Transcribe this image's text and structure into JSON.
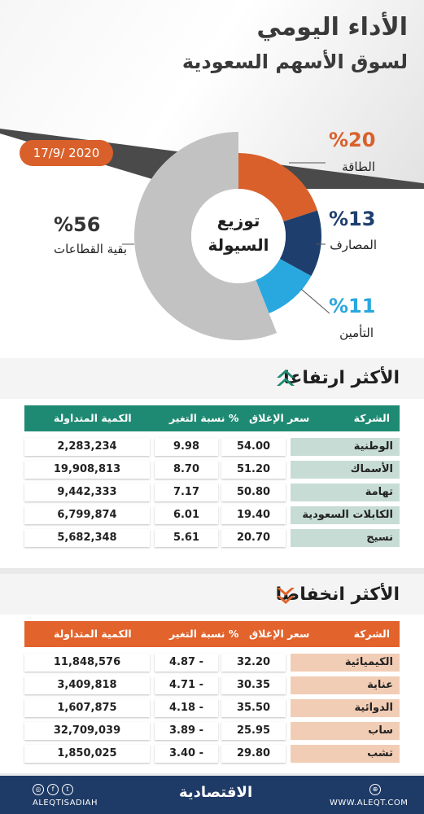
{
  "header": {
    "title_line1": "الأداء اليومي",
    "title_line2": "لسوق الأسهم السعودية",
    "date": "17/9/ 2020"
  },
  "chart_data": {
    "type": "pie",
    "center_label_line1": "توزيع",
    "center_label_line2": "السيولة",
    "slices": [
      {
        "label": "الطاقة",
        "pct_text": "%20",
        "value": 20,
        "color": "#d9602b"
      },
      {
        "label": "المصارف",
        "pct_text": "%13",
        "value": 13,
        "color": "#1e3f6e"
      },
      {
        "label": "التأمين",
        "pct_text": "%11",
        "value": 11,
        "color": "#29a8df"
      },
      {
        "label": "بقية القطاعات",
        "pct_text": "%56",
        "value": 56,
        "color": "#c2c2c2"
      }
    ]
  },
  "gainers": {
    "title": "الأكثر ارتفاعا",
    "header_color": "#1f8a73",
    "name_cell_color": "#c7dcd5",
    "columns": {
      "name": "الشركة",
      "close": "سعر الإغلاق",
      "pct": "نسبة التغير %",
      "qty": "الكمية المتداولة"
    },
    "rows": [
      {
        "name": "الوطنية",
        "close": "54.00",
        "pct": "9.98",
        "qty": "2,283,234"
      },
      {
        "name": "الأسماك",
        "close": "51.20",
        "pct": "8.70",
        "qty": "19,908,813"
      },
      {
        "name": "تهامة",
        "close": "50.80",
        "pct": "7.17",
        "qty": "9,442,333"
      },
      {
        "name": "الكابلات السعودية",
        "close": "19.40",
        "pct": "6.01",
        "qty": "6,799,874"
      },
      {
        "name": "نسيج",
        "close": "20.70",
        "pct": "5.61",
        "qty": "5,682,348"
      }
    ]
  },
  "losers": {
    "title": "الأكثر انخفاضا",
    "header_color": "#e2632c",
    "name_cell_color": "#f2cdb5",
    "columns": {
      "name": "الشركة",
      "close": "سعر الإغلاق",
      "pct": "نسبة التغير %",
      "qty": "الكمية المتداولة"
    },
    "rows": [
      {
        "name": "الكيميائية",
        "close": "32.20",
        "pct": "4.87 -",
        "qty": "11,848,576"
      },
      {
        "name": "عناية",
        "close": "30.35",
        "pct": "4.71 -",
        "qty": "3,409,818"
      },
      {
        "name": "الدوائية",
        "close": "35.50",
        "pct": "4.18 -",
        "qty": "1,607,875"
      },
      {
        "name": "ساب",
        "close": "25.95",
        "pct": "3.89 -",
        "qty": "32,709,039"
      },
      {
        "name": "تشب",
        "close": "29.80",
        "pct": "3.40 -",
        "qty": "1,850,025"
      }
    ]
  },
  "footer": {
    "handle": "ALEQTISADIAH",
    "brand": "الاقتصادية",
    "website": "WWW.ALEQT.COM",
    "icons": [
      "instagram-icon",
      "facebook-icon",
      "twitter-icon",
      "globe-icon"
    ]
  }
}
